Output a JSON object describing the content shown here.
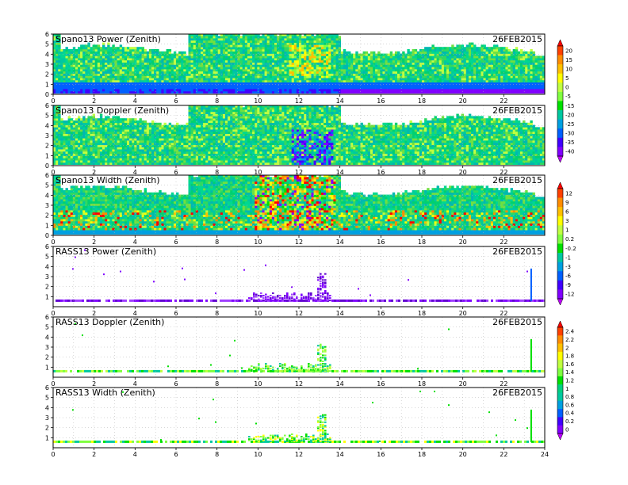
{
  "panels": [
    {
      "title": "Spano13 Power (Zenith)",
      "date": "26FEB2015",
      "colorbar": "cb_power",
      "kind": "field",
      "variant": "power"
    },
    {
      "title": "Spano13 Doppler (Zenith)",
      "date": "26FEB2015",
      "colorbar": "cb_power",
      "kind": "field",
      "variant": "doppler"
    },
    {
      "title": "Spano13 Width (Zenith)",
      "date": "26FEB2015",
      "colorbar": "cb_width",
      "kind": "field",
      "variant": "width"
    },
    {
      "title": "RASS13 Power (Zenith)",
      "date": "26FEB2015",
      "colorbar": "cb_width",
      "kind": "sparse",
      "variant": "rpower"
    },
    {
      "title": "RASS13 Doppler (Zenith)",
      "date": "26FEB2015",
      "colorbar": "cb_doppler",
      "kind": "sparse",
      "variant": "rdoppler"
    },
    {
      "title": "RASS13 Width (Zenith)",
      "date": "26FEB2015",
      "colorbar": "cb_doppler",
      "kind": "sparse",
      "variant": "rwidth"
    }
  ],
  "chart_data": {
    "type": "heatmap",
    "x_axis": {
      "range": [
        0,
        24
      ],
      "tick_labels": [
        "0",
        "2",
        "4",
        "6",
        "8",
        "10",
        "12",
        "14",
        "16",
        "18",
        "20",
        "22"
      ],
      "final_panel_tick_labels": [
        "0",
        "2",
        "4",
        "6",
        "8",
        "10",
        "12",
        "14",
        "16",
        "18",
        "20",
        "22",
        "24"
      ]
    },
    "y_axis": {
      "range": [
        0,
        6
      ],
      "tick_labels": [
        "0",
        "1",
        "2",
        "3",
        "4",
        "5",
        "6"
      ],
      "rass_tick_labels": [
        "1",
        "2",
        "3",
        "4",
        "5",
        "6"
      ]
    },
    "grid": "dotted",
    "colorbars": {
      "cb_power": {
        "labels": [
          "20",
          "15",
          "10",
          "5",
          "0",
          "-5",
          "-15",
          "-20",
          "-25",
          "-30",
          "-35",
          "-40"
        ],
        "colors": [
          "#ff0000",
          "#ff4000",
          "#ff8c00",
          "#ffc000",
          "#ffff00",
          "#c0ff40",
          "#80ff40",
          "#00e000",
          "#00c8a0",
          "#00a0e0",
          "#0060ff",
          "#4000ff",
          "#8000ff",
          "#c000ff"
        ]
      },
      "cb_width": {
        "labels": [
          "12",
          "9",
          "6",
          "3",
          "1",
          "0.2",
          "-0.2",
          "-1",
          "-3",
          "-6",
          "-9",
          "-12"
        ],
        "colors": [
          "#ff0000",
          "#ff4000",
          "#ff8c00",
          "#ffc000",
          "#ffff00",
          "#c0ff40",
          "#80ff40",
          "#00e000",
          "#00c8a0",
          "#00a0e0",
          "#0060ff",
          "#4000ff",
          "#8000ff",
          "#c000ff"
        ]
      },
      "cb_doppler": {
        "labels": [
          "2.4",
          "2.2",
          "2",
          "1.8",
          "1.6",
          "1.4",
          "1.2",
          "1",
          "0.8",
          "0.6",
          "0.4",
          "0.2",
          "0"
        ],
        "colors": [
          "#ff0000",
          "#ff4000",
          "#ff8c00",
          "#ffc000",
          "#ffff00",
          "#c0ff40",
          "#80ff40",
          "#00e000",
          "#00d080",
          "#00c8a0",
          "#00a0e0",
          "#0060ff",
          "#4000ff",
          "#8000ff",
          "#c000ff"
        ]
      }
    }
  }
}
